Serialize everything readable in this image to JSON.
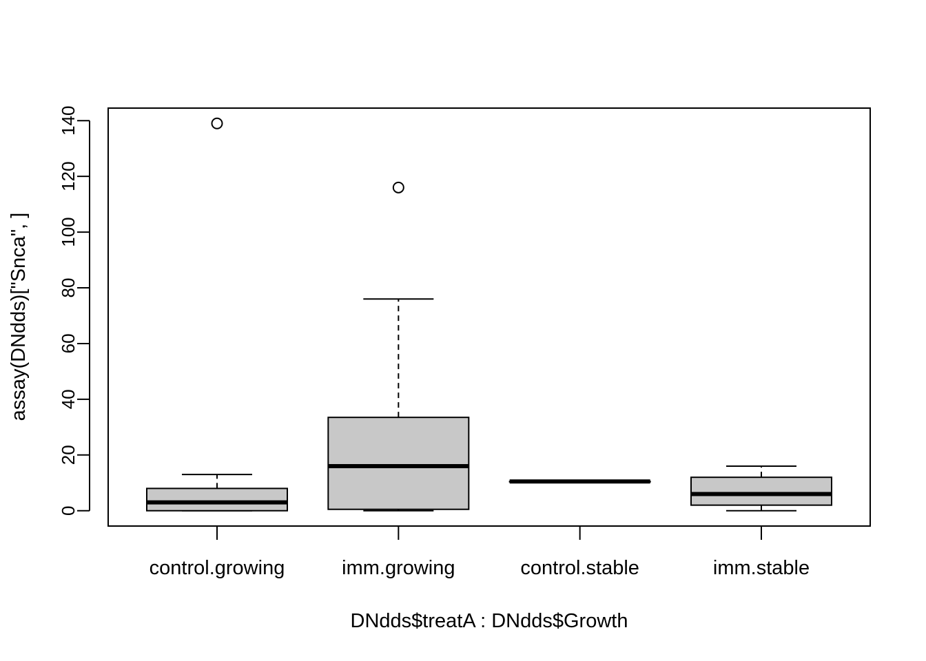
{
  "chart_data": {
    "type": "boxplot",
    "xlabel": "DNdds$treatA : DNdds$Growth",
    "ylabel": "assay(DNdds)[\"Snca\", ]",
    "ylim": [
      -5.5,
      144.5
    ],
    "yticks": [
      0,
      20,
      40,
      60,
      80,
      100,
      120,
      140
    ],
    "grid": false,
    "box_fill": "#c8c8c8",
    "categories": [
      "control.growing",
      "imm.growing",
      "control.stable",
      "imm.stable"
    ],
    "boxes": [
      {
        "category": "control.growing",
        "whisker_low": 0,
        "q1": 0,
        "median": 3,
        "q3": 8,
        "whisker_high": 13,
        "outliers": [
          139
        ]
      },
      {
        "category": "imm.growing",
        "whisker_low": 0,
        "q1": 0.5,
        "median": 16,
        "q3": 33.5,
        "whisker_high": 76,
        "outliers": [
          116
        ]
      },
      {
        "category": "control.stable",
        "whisker_low": 10.5,
        "q1": 10.5,
        "median": 10.5,
        "q3": 10.5,
        "whisker_high": 10.5,
        "outliers": []
      },
      {
        "category": "imm.stable",
        "whisker_low": 0,
        "q1": 2,
        "median": 6,
        "q3": 12,
        "whisker_high": 16,
        "outliers": []
      }
    ]
  }
}
